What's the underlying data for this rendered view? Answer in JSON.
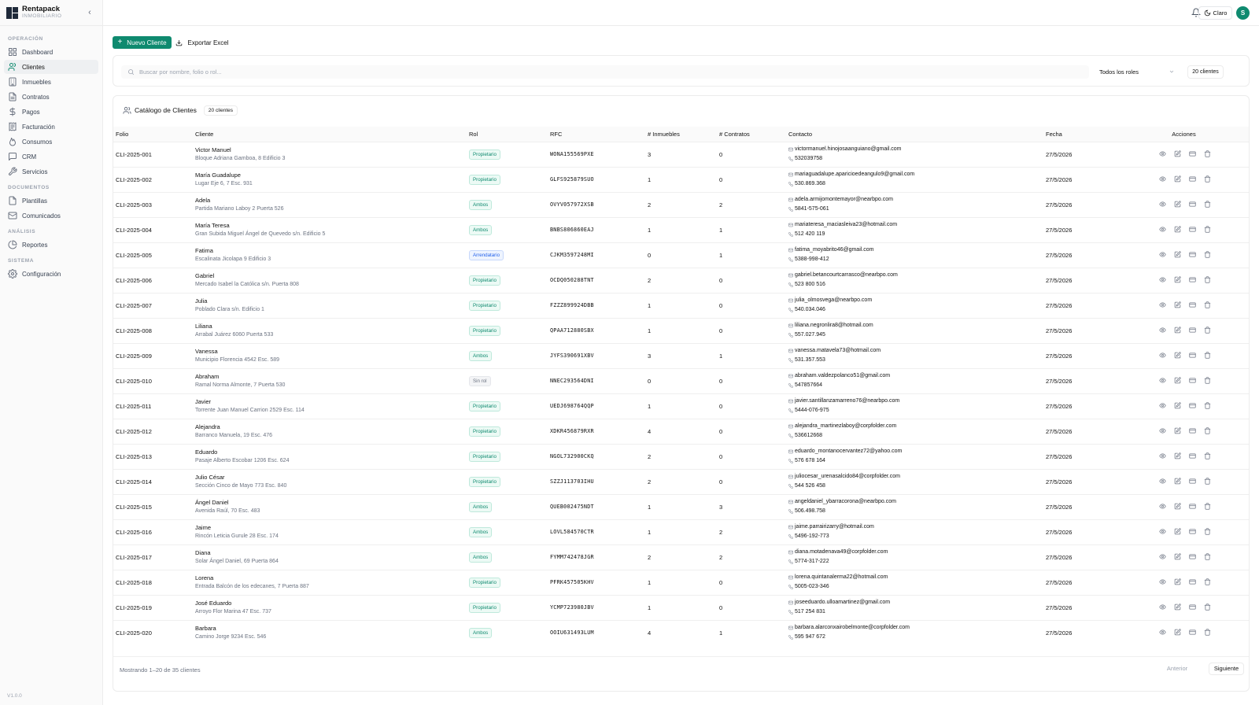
{
  "app": {
    "name": "Rentapack",
    "subtitle": "INMOBILIARIO",
    "version": "V1.0.0"
  },
  "sidebar": {
    "sections": [
      {
        "label": "OPERACIÓN",
        "items": [
          {
            "label": "Dashboard",
            "icon": "grid-icon",
            "active": false
          },
          {
            "label": "Clientes",
            "icon": "users-icon",
            "active": true
          },
          {
            "label": "Inmuebles",
            "icon": "building-icon",
            "active": false
          },
          {
            "label": "Contratos",
            "icon": "document-icon",
            "active": false
          },
          {
            "label": "Pagos",
            "icon": "dollar-icon",
            "active": false
          },
          {
            "label": "Facturación",
            "icon": "receipt-icon",
            "active": false
          },
          {
            "label": "Consumos",
            "icon": "flame-icon",
            "active": false
          },
          {
            "label": "CRM",
            "icon": "chat-icon",
            "active": false
          },
          {
            "label": "Servicios",
            "icon": "wrench-icon",
            "active": false
          }
        ]
      },
      {
        "label": "DOCUMENTOS",
        "items": [
          {
            "label": "Plantillas",
            "icon": "file-icon",
            "active": false
          },
          {
            "label": "Comunicados",
            "icon": "mail-icon",
            "active": false
          }
        ]
      },
      {
        "label": "ANÁLISIS",
        "items": [
          {
            "label": "Reportes",
            "icon": "pie-chart-icon",
            "active": false
          }
        ]
      },
      {
        "label": "SISTEMA",
        "items": [
          {
            "label": "Configuración",
            "icon": "gear-icon",
            "active": false
          }
        ]
      }
    ]
  },
  "topbar": {
    "theme_label": "Claro",
    "avatar_initial": "S"
  },
  "toolbar": {
    "new_client": "Nuevo Cliente",
    "export": "Exportar Excel"
  },
  "filters": {
    "search_placeholder": "Buscar por nombre, folio o rol...",
    "role_select": "Todos los roles",
    "count": "20 clientes"
  },
  "catalog": {
    "title": "Catálogo de Clientes",
    "count": "20 clientes",
    "columns": [
      "Folio",
      "Cliente",
      "Rol",
      "RFC",
      "# Inmuebles",
      "# Contratos",
      "Contacto",
      "Fecha",
      "Acciones"
    ],
    "rows": [
      {
        "folio": "CLI-2025-001",
        "name": "Victor Manuel",
        "address": "Bloque Adriana Gamboa, 8 Edificio 3",
        "role": "Propietario",
        "rfc": "WONA155569PXE",
        "inmuebles": "3",
        "contratos": "0",
        "email": "victormanuel.hinojosaanguiano@gmail.com",
        "phone": "532039758",
        "fecha": "27/5/2026"
      },
      {
        "folio": "CLI-2025-002",
        "name": "María Guadalupe",
        "address": "Lugar Eje 6, 7 Esc. 931",
        "role": "Propietario",
        "rfc": "GLFS925879SUO",
        "inmuebles": "1",
        "contratos": "0",
        "email": "mariaguadalupe.aparicioedeangulo9@gmail.com",
        "phone": "530.869.368",
        "fecha": "27/5/2026"
      },
      {
        "folio": "CLI-2025-003",
        "name": "Adela",
        "address": "Partida Mariano Laboy 2 Puerta 526",
        "role": "Ambos",
        "rfc": "OVYV057972XSB",
        "inmuebles": "2",
        "contratos": "2",
        "email": "adela.armijomontemayor@nearbpo.com",
        "phone": "5841-575-061",
        "fecha": "27/5/2026"
      },
      {
        "folio": "CLI-2025-004",
        "name": "María Teresa",
        "address": "Gran Subida Miguel Ángel de Quevedo s/n. Edificio 5",
        "role": "Ambos",
        "rfc": "BNBS806860EAJ",
        "inmuebles": "1",
        "contratos": "1",
        "email": "mariateresa_maciasleiva23@hotmail.com",
        "phone": "512 420 119",
        "fecha": "27/5/2026"
      },
      {
        "folio": "CLI-2025-005",
        "name": "Fatima",
        "address": "Escalinata Jicolapa 9 Edificio 3",
        "role": "Arrendatario",
        "rfc": "CJKM3597248MI",
        "inmuebles": "0",
        "contratos": "1",
        "email": "fatima_moyabrito46@gmail.com",
        "phone": "5388-998-412",
        "fecha": "27/5/2026"
      },
      {
        "folio": "CLI-2025-006",
        "name": "Gabriel",
        "address": "Mercado Isabel la Católica s/n. Puerta 808",
        "role": "Propietario",
        "rfc": "OCDQ050288TNT",
        "inmuebles": "2",
        "contratos": "0",
        "email": "gabriel.betancourtcarrasco@nearbpo.com",
        "phone": "523 800 516",
        "fecha": "27/5/2026"
      },
      {
        "folio": "CLI-2025-007",
        "name": "Julia",
        "address": "Poblado Clara s/n. Edificio 1",
        "role": "Propietario",
        "rfc": "FZZZ899924DBB",
        "inmuebles": "1",
        "contratos": "0",
        "email": "julia_olmosvega@nearbpo.com",
        "phone": "540.034.046",
        "fecha": "27/5/2026"
      },
      {
        "folio": "CLI-2025-008",
        "name": "Liliana",
        "address": "Arrabal Juárez 6060 Puerta 533",
        "role": "Propietario",
        "rfc": "QPAA712880SBX",
        "inmuebles": "1",
        "contratos": "0",
        "email": "liliana.negronlira8@hotmail.com",
        "phone": "557.027.945",
        "fecha": "27/5/2026"
      },
      {
        "folio": "CLI-2025-009",
        "name": "Vanessa",
        "address": "Municipio Florencia 4542 Esc. 589",
        "role": "Ambos",
        "rfc": "JYFS390691XBV",
        "inmuebles": "3",
        "contratos": "1",
        "email": "vanessa.matavela73@hotmail.com",
        "phone": "531.357.553",
        "fecha": "27/5/2026"
      },
      {
        "folio": "CLI-2025-010",
        "name": "Abraham",
        "address": "Ramal Norma Almonte, 7 Puerta 530",
        "role": "Sin rol",
        "rfc": "NNEC293564DNI",
        "inmuebles": "0",
        "contratos": "0",
        "email": "abraham.valdezpolanco51@gmail.com",
        "phone": "547857664",
        "fecha": "27/5/2026"
      },
      {
        "folio": "CLI-2025-011",
        "name": "Javier",
        "address": "Torrente Juan Manuel Carrion 2529 Esc. 114",
        "role": "Propietario",
        "rfc": "UEDJ698764QQP",
        "inmuebles": "1",
        "contratos": "0",
        "email": "javier.santillanzamarreno76@nearbpo.com",
        "phone": "5444-076-975",
        "fecha": "27/5/2026"
      },
      {
        "folio": "CLI-2025-012",
        "name": "Alejandra",
        "address": "Barranco Manuela, 19 Esc. 476",
        "role": "Propietario",
        "rfc": "XDKR456879RXR",
        "inmuebles": "4",
        "contratos": "0",
        "email": "alejandra_martinezlaboy@corpfolder.com",
        "phone": "536612668",
        "fecha": "27/5/2026"
      },
      {
        "folio": "CLI-2025-013",
        "name": "Eduardo",
        "address": "Pasaje Alberto Escobar 1206 Esc. 624",
        "role": "Propietario",
        "rfc": "NGOL732900CKQ",
        "inmuebles": "2",
        "contratos": "0",
        "email": "eduardo_montanocervantez72@yahoo.com",
        "phone": "576 678 164",
        "fecha": "27/5/2026"
      },
      {
        "folio": "CLI-2025-014",
        "name": "Julio César",
        "address": "Sección Cinco de Mayo 773 Esc. 840",
        "role": "Propietario",
        "rfc": "SZZJ113703IHU",
        "inmuebles": "2",
        "contratos": "0",
        "email": "juliocesar_urenasalcido84@corpfolder.com",
        "phone": "544 526 458",
        "fecha": "27/5/2026"
      },
      {
        "folio": "CLI-2025-015",
        "name": "Ángel Daniel",
        "address": "Avenida Raúl, 70 Esc. 483",
        "role": "Ambos",
        "rfc": "QUEB002475NDT",
        "inmuebles": "1",
        "contratos": "3",
        "email": "angeldaniel_ybarracorona@nearbpo.com",
        "phone": "506.498.758",
        "fecha": "27/5/2026"
      },
      {
        "folio": "CLI-2025-016",
        "name": "Jaime",
        "address": "Rincón Leticia Gurule 28 Esc. 174",
        "role": "Ambos",
        "rfc": "LOVL584570CTR",
        "inmuebles": "1",
        "contratos": "2",
        "email": "jaime.parrairizarry@hotmail.com",
        "phone": "5496-192-773",
        "fecha": "27/5/2026"
      },
      {
        "folio": "CLI-2025-017",
        "name": "Diana",
        "address": "Solar Ángel Daniel, 69 Puerta 864",
        "role": "Ambos",
        "rfc": "FYMM742478JGR",
        "inmuebles": "2",
        "contratos": "2",
        "email": "diana.motadenava49@corpfolder.com",
        "phone": "5774-317-222",
        "fecha": "27/5/2026"
      },
      {
        "folio": "CLI-2025-018",
        "name": "Lorena",
        "address": "Entrada Balcón de los edecanes, 7 Puerta 887",
        "role": "Propietario",
        "rfc": "PFRK457505KHV",
        "inmuebles": "1",
        "contratos": "0",
        "email": "lorena.quintanalerma22@hotmail.com",
        "phone": "5005-023-346",
        "fecha": "27/5/2026"
      },
      {
        "folio": "CLI-2025-019",
        "name": "José Eduardo",
        "address": "Arroyo Flor Marina 47 Esc. 737",
        "role": "Propietario",
        "rfc": "YCMP723980JBV",
        "inmuebles": "1",
        "contratos": "0",
        "email": "joseeduardo.ulloamartinez@gmail.com",
        "phone": "517 254 831",
        "fecha": "27/5/2026"
      },
      {
        "folio": "CLI-2025-020",
        "name": "Barbara",
        "address": "Camino Jorge 9234 Esc. 546",
        "role": "Ambos",
        "rfc": "OOIU631493LUM",
        "inmuebles": "4",
        "contratos": "1",
        "email": "barbara.alarconxairobelmonte@corpfolder.com",
        "phone": "595 947 672",
        "fecha": "27/5/2026"
      }
    ]
  },
  "pagination": {
    "showing": "Mostrando 1–20 de 35 clientes",
    "prev": "Anterior",
    "next": "Siguiente"
  },
  "colors": {
    "accent": "#0f8a6f",
    "arrendatario": "#2563eb",
    "muted": "#6b7280"
  }
}
